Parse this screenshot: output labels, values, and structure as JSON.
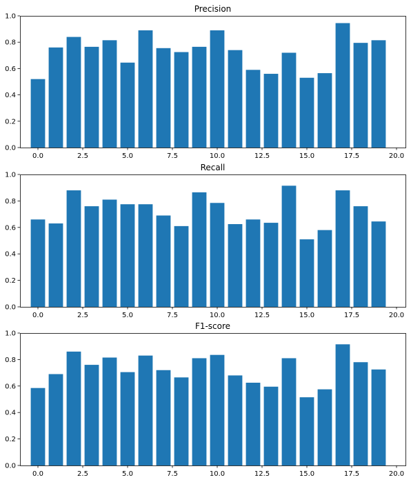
{
  "colors": {
    "bar": "#1f77b4",
    "axis": "#000000",
    "background": "#ffffff"
  },
  "chart_data": [
    {
      "type": "bar",
      "title": "Precision",
      "x": [
        0,
        1,
        2,
        3,
        4,
        5,
        6,
        7,
        8,
        9,
        10,
        11,
        12,
        13,
        14,
        15,
        16,
        17,
        18,
        19
      ],
      "values": [
        0.52,
        0.76,
        0.84,
        0.765,
        0.815,
        0.645,
        0.89,
        0.755,
        0.725,
        0.765,
        0.89,
        0.74,
        0.59,
        0.56,
        0.72,
        0.53,
        0.565,
        0.945,
        0.795,
        0.815
      ],
      "xlabel": "",
      "ylabel": "",
      "xlim": [
        -1,
        20.5
      ],
      "ylim": [
        0,
        1.0
      ],
      "xticks": [
        "0.0",
        "2.5",
        "5.0",
        "7.5",
        "10.0",
        "12.5",
        "15.0",
        "17.5",
        "20.0"
      ],
      "yticks": [
        "0.0",
        "0.2",
        "0.4",
        "0.6",
        "0.8",
        "1.0"
      ],
      "grid": false
    },
    {
      "type": "bar",
      "title": "Recall",
      "x": [
        0,
        1,
        2,
        3,
        4,
        5,
        6,
        7,
        8,
        9,
        10,
        11,
        12,
        13,
        14,
        15,
        16,
        17,
        18,
        19
      ],
      "values": [
        0.66,
        0.63,
        0.88,
        0.76,
        0.81,
        0.775,
        0.775,
        0.69,
        0.61,
        0.865,
        0.785,
        0.625,
        0.66,
        0.635,
        0.915,
        0.51,
        0.58,
        0.88,
        0.76,
        0.645
      ],
      "xlabel": "",
      "ylabel": "",
      "xlim": [
        -1,
        20.5
      ],
      "ylim": [
        0,
        1.0
      ],
      "xticks": [
        "0.0",
        "2.5",
        "5.0",
        "7.5",
        "10.0",
        "12.5",
        "15.0",
        "17.5",
        "20.0"
      ],
      "yticks": [
        "0.0",
        "0.2",
        "0.4",
        "0.6",
        "0.8",
        "1.0"
      ],
      "grid": false
    },
    {
      "type": "bar",
      "title": "F1-score",
      "x": [
        0,
        1,
        2,
        3,
        4,
        5,
        6,
        7,
        8,
        9,
        10,
        11,
        12,
        13,
        14,
        15,
        16,
        17,
        18,
        19
      ],
      "values": [
        0.585,
        0.69,
        0.86,
        0.76,
        0.815,
        0.705,
        0.83,
        0.72,
        0.665,
        0.81,
        0.835,
        0.68,
        0.625,
        0.595,
        0.81,
        0.515,
        0.575,
        0.915,
        0.78,
        0.725
      ],
      "xlabel": "",
      "ylabel": "",
      "xlim": [
        -1,
        20.5
      ],
      "ylim": [
        0,
        1.0
      ],
      "xticks": [
        "0.0",
        "2.5",
        "5.0",
        "7.5",
        "10.0",
        "12.5",
        "15.0",
        "17.5",
        "20.0"
      ],
      "yticks": [
        "0.0",
        "0.2",
        "0.4",
        "0.6",
        "0.8",
        "1.0"
      ],
      "grid": false
    }
  ]
}
